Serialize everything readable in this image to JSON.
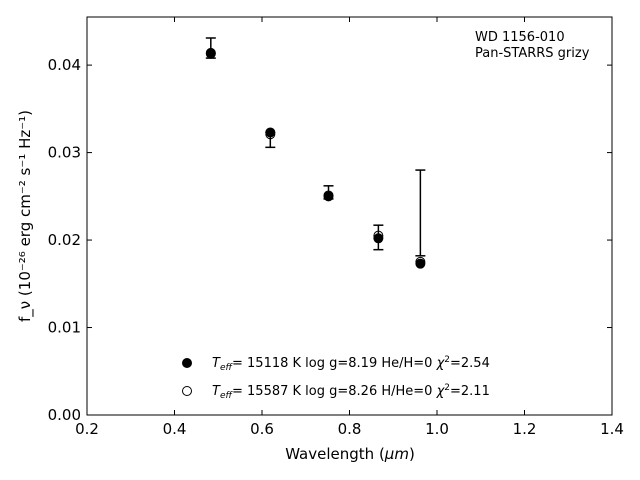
{
  "chart_data": {
    "type": "scatter",
    "xlabel_main": "Wavelength (",
    "xlabel_unit": "μm",
    "xlabel_close": ")",
    "ylabel": "f_ν (10⁻²⁶ erg cm⁻² s⁻¹ Hz⁻¹)",
    "xlim": [
      0.2,
      1.4
    ],
    "ylim": [
      0.0,
      0.0455
    ],
    "xticks": [
      0.2,
      0.4,
      0.6,
      0.8,
      1.0,
      1.2,
      1.4
    ],
    "xtick_labels": [
      "0.2",
      "0.4",
      "0.6",
      "0.8",
      "1.0",
      "1.2",
      "1.4"
    ],
    "yticks": [
      0.0,
      0.01,
      0.02,
      0.03,
      0.04
    ],
    "ytick_labels": [
      "0.00",
      "0.01",
      "0.02",
      "0.03",
      "0.04"
    ],
    "annotation": [
      "WD 1156-010",
      "Pan-STARRS grizy"
    ],
    "observed": {
      "x": [
        0.483,
        0.619,
        0.752,
        0.866,
        0.962
      ],
      "y": [
        0.0414,
        0.0322,
        0.0254,
        0.0203,
        0.0182
      ],
      "yerr_low": [
        0.0408,
        0.0306,
        0.0247,
        0.0189,
        0.0182
      ],
      "yerr_high": [
        0.0431,
        0.0323,
        0.0262,
        0.0217,
        0.028
      ]
    },
    "series": [
      {
        "name": "Teff= 15118 K  log g=8.19  He/H=0  χ2=2.54",
        "marker": "filled-circle",
        "x": [
          0.483,
          0.619,
          0.752,
          0.866,
          0.962
        ],
        "y": [
          0.0414,
          0.0323,
          0.025,
          0.0202,
          0.0173
        ]
      },
      {
        "name": "Teff= 15587 K  log g=8.26  H/He=0  χ2=2.11",
        "marker": "open-circle",
        "x": [
          0.483,
          0.619,
          0.752,
          0.866,
          0.962
        ],
        "y": [
          0.0413,
          0.0321,
          0.0251,
          0.0205,
          0.0175
        ]
      }
    ],
    "legend": [
      {
        "teff": "= 15118 K  log g=8.19  He/H=0  ",
        "chi": "=2.54"
      },
      {
        "teff": "= 15587 K  log g=8.26  H/He=0  ",
        "chi": "=2.11"
      }
    ],
    "legend_placement": "lower-center",
    "grid": false
  }
}
